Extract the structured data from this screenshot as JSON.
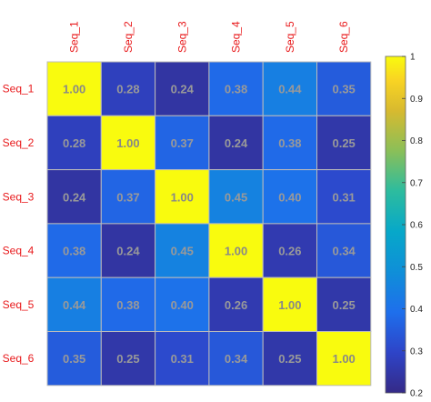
{
  "chart_data": {
    "type": "heatmap",
    "row_labels": [
      "Seq_1",
      "Seq_2",
      "Seq_3",
      "Seq_4",
      "Seq_5",
      "Seq_6"
    ],
    "col_labels": [
      "Seq_1",
      "Seq_2",
      "Seq_3",
      "Seq_4",
      "Seq_5",
      "Seq_6"
    ],
    "values": [
      [
        1.0,
        0.28,
        0.24,
        0.38,
        0.44,
        0.35
      ],
      [
        0.28,
        1.0,
        0.37,
        0.24,
        0.38,
        0.25
      ],
      [
        0.24,
        0.37,
        1.0,
        0.45,
        0.4,
        0.31
      ],
      [
        0.38,
        0.24,
        0.45,
        1.0,
        0.26,
        0.34
      ],
      [
        0.44,
        0.38,
        0.4,
        0.26,
        1.0,
        0.25
      ],
      [
        0.35,
        0.25,
        0.31,
        0.34,
        0.25,
        1.0
      ]
    ],
    "value_format": "0.00",
    "colormap": "parula",
    "colorbar": {
      "range": [
        0.2,
        1
      ],
      "ticks": [
        0.2,
        0.3,
        0.4,
        0.5,
        0.6,
        0.7,
        0.8,
        0.9,
        1
      ],
      "tick_labels": [
        "0.2",
        "0.3",
        "0.4",
        "0.5",
        "0.6",
        "0.7",
        "0.8",
        "0.9",
        "1"
      ],
      "position": "right"
    },
    "column_labels_position": "top",
    "column_label_rotation": "vertical",
    "label_color": "#e8191b",
    "cell_text_color": "#999999",
    "diagonal_text_color": "#888888",
    "grid": true,
    "grid_color": "#bbbbbb"
  }
}
